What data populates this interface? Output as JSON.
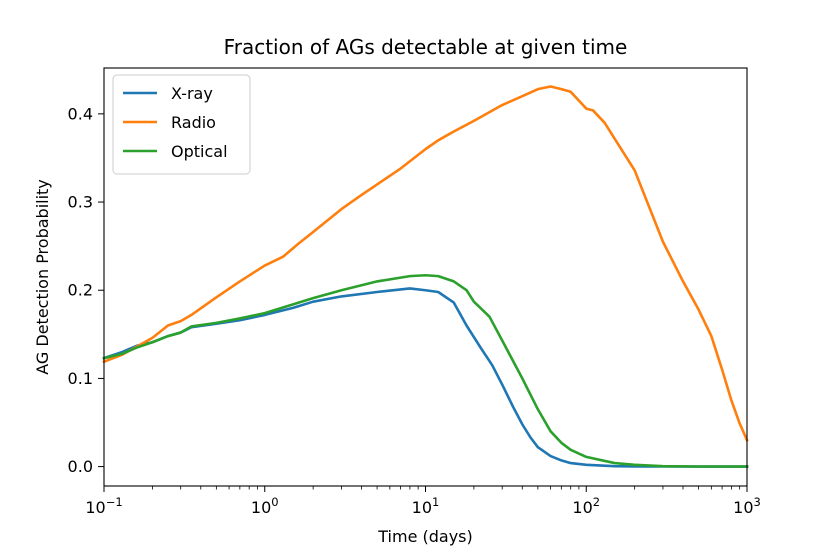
{
  "chart_data": {
    "type": "line",
    "title": "Fraction of AGs detectable at given time",
    "xlabel": "Time (days)",
    "ylabel": "AG Detection Probability",
    "xscale": "log",
    "xlim": [
      0.1,
      1000
    ],
    "ylim": [
      -0.022,
      0.452
    ],
    "grid": false,
    "legend_position": "top-left",
    "x_ticks": [
      {
        "value": 0.1,
        "base": "10",
        "exp": "−1"
      },
      {
        "value": 1,
        "base": "10",
        "exp": "0"
      },
      {
        "value": 10,
        "base": "10",
        "exp": "1"
      },
      {
        "value": 100,
        "base": "10",
        "exp": "2"
      },
      {
        "value": 1000,
        "base": "10",
        "exp": "3"
      }
    ],
    "y_ticks": [
      {
        "value": 0.0,
        "label": "0.0"
      },
      {
        "value": 0.1,
        "label": "0.1"
      },
      {
        "value": 0.2,
        "label": "0.2"
      },
      {
        "value": 0.3,
        "label": "0.3"
      },
      {
        "value": 0.4,
        "label": "0.4"
      }
    ],
    "series": [
      {
        "name": "X-ray",
        "color": "#1f77b4",
        "points": [
          [
            0.1,
            0.123
          ],
          [
            0.13,
            0.13
          ],
          [
            0.16,
            0.137
          ],
          [
            0.2,
            0.141
          ],
          [
            0.25,
            0.148
          ],
          [
            0.3,
            0.152
          ],
          [
            0.35,
            0.158
          ],
          [
            0.5,
            0.162
          ],
          [
            0.7,
            0.166
          ],
          [
            1.0,
            0.172
          ],
          [
            1.5,
            0.18
          ],
          [
            2.0,
            0.187
          ],
          [
            3.0,
            0.193
          ],
          [
            5.0,
            0.198
          ],
          [
            8.0,
            0.202
          ],
          [
            10.0,
            0.2
          ],
          [
            12.0,
            0.198
          ],
          [
            15.0,
            0.186
          ],
          [
            18.0,
            0.16
          ],
          [
            22.0,
            0.135
          ],
          [
            26.0,
            0.115
          ],
          [
            30.0,
            0.093
          ],
          [
            35.0,
            0.068
          ],
          [
            40.0,
            0.048
          ],
          [
            45.0,
            0.033
          ],
          [
            50.0,
            0.022
          ],
          [
            60.0,
            0.012
          ],
          [
            70.0,
            0.007
          ],
          [
            80.0,
            0.004
          ],
          [
            100.0,
            0.002
          ],
          [
            150.0,
            0.0005
          ],
          [
            200.0,
            0.0002
          ],
          [
            300.0,
            0.0001
          ],
          [
            500.0,
            0.0
          ],
          [
            1000.0,
            0.0
          ]
        ]
      },
      {
        "name": "Radio",
        "color": "#ff7f0e",
        "points": [
          [
            0.1,
            0.119
          ],
          [
            0.13,
            0.127
          ],
          [
            0.16,
            0.136
          ],
          [
            0.2,
            0.146
          ],
          [
            0.25,
            0.16
          ],
          [
            0.3,
            0.165
          ],
          [
            0.35,
            0.172
          ],
          [
            0.5,
            0.192
          ],
          [
            0.7,
            0.21
          ],
          [
            1.0,
            0.228
          ],
          [
            1.3,
            0.238
          ],
          [
            1.6,
            0.252
          ],
          [
            2.0,
            0.266
          ],
          [
            3.0,
            0.292
          ],
          [
            4.0,
            0.308
          ],
          [
            5.0,
            0.32
          ],
          [
            7.0,
            0.338
          ],
          [
            10.0,
            0.36
          ],
          [
            12.0,
            0.37
          ],
          [
            15.0,
            0.38
          ],
          [
            20.0,
            0.392
          ],
          [
            30.0,
            0.41
          ],
          [
            40.0,
            0.42
          ],
          [
            50.0,
            0.428
          ],
          [
            60.0,
            0.431
          ],
          [
            70.0,
            0.428
          ],
          [
            80.0,
            0.425
          ],
          [
            90.0,
            0.415
          ],
          [
            100.0,
            0.406
          ],
          [
            110.0,
            0.404
          ],
          [
            130.0,
            0.39
          ],
          [
            150.0,
            0.372
          ],
          [
            200.0,
            0.336
          ],
          [
            300.0,
            0.255
          ],
          [
            400.0,
            0.21
          ],
          [
            500.0,
            0.178
          ],
          [
            600.0,
            0.148
          ],
          [
            700.0,
            0.11
          ],
          [
            800.0,
            0.075
          ],
          [
            900.0,
            0.049
          ],
          [
            1000.0,
            0.03
          ]
        ]
      },
      {
        "name": "Optical",
        "color": "#2ca02c",
        "points": [
          [
            0.1,
            0.123
          ],
          [
            0.13,
            0.128
          ],
          [
            0.16,
            0.135
          ],
          [
            0.2,
            0.141
          ],
          [
            0.25,
            0.148
          ],
          [
            0.3,
            0.152
          ],
          [
            0.35,
            0.159
          ],
          [
            0.5,
            0.163
          ],
          [
            0.7,
            0.168
          ],
          [
            1.0,
            0.174
          ],
          [
            1.5,
            0.184
          ],
          [
            2.0,
            0.191
          ],
          [
            3.0,
            0.2
          ],
          [
            5.0,
            0.21
          ],
          [
            8.0,
            0.216
          ],
          [
            10.0,
            0.217
          ],
          [
            12.0,
            0.216
          ],
          [
            15.0,
            0.21
          ],
          [
            18.0,
            0.2
          ],
          [
            20.0,
            0.187
          ],
          [
            25.0,
            0.17
          ],
          [
            30.0,
            0.143
          ],
          [
            40.0,
            0.1
          ],
          [
            50.0,
            0.065
          ],
          [
            60.0,
            0.04
          ],
          [
            70.0,
            0.027
          ],
          [
            80.0,
            0.019
          ],
          [
            100.0,
            0.011
          ],
          [
            150.0,
            0.004
          ],
          [
            200.0,
            0.002
          ],
          [
            300.0,
            0.0005
          ],
          [
            500.0,
            0.0001
          ],
          [
            1000.0,
            0.0
          ]
        ]
      }
    ]
  }
}
